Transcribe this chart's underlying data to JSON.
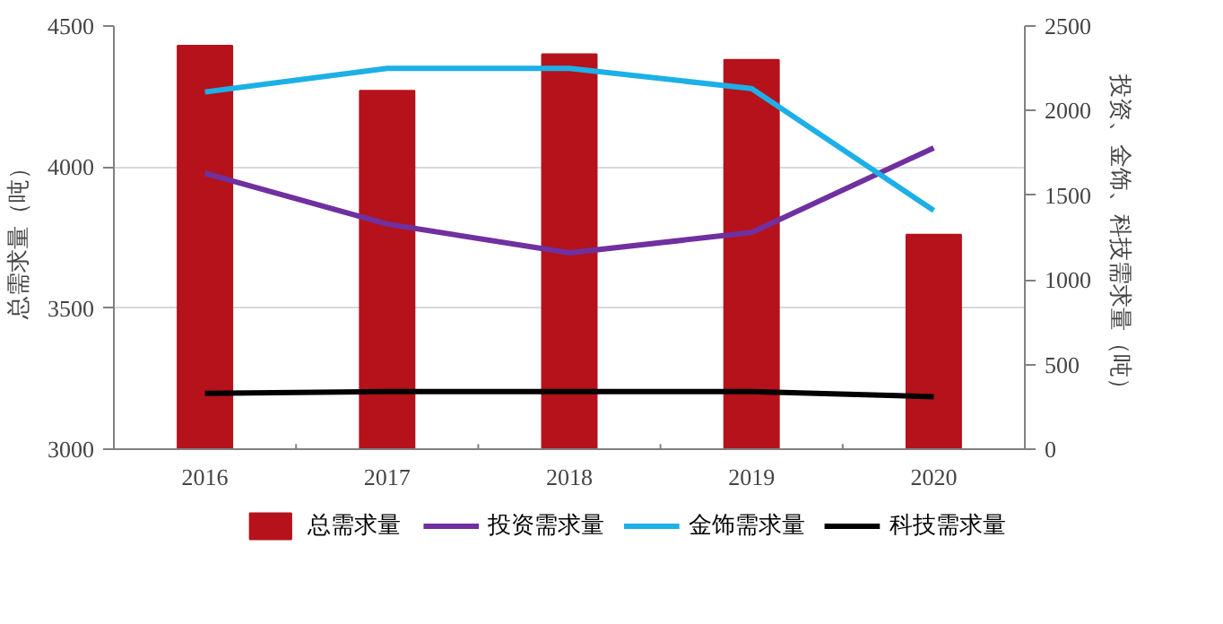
{
  "chart_data": {
    "type": "bar",
    "categories": [
      "2016",
      "2017",
      "2018",
      "2019",
      "2020"
    ],
    "ylabel": "总需求量（吨）",
    "y2label": "投资、金饰、科技需求量（吨）",
    "ylim": [
      3000,
      4500
    ],
    "yticks": [
      3000,
      3500,
      4000,
      4500
    ],
    "y2lim": [
      0,
      2500
    ],
    "y2ticks": [
      0,
      500,
      1000,
      1500,
      2000,
      2500
    ],
    "grid": "y",
    "legend": "bottom",
    "series": [
      {
        "name": "总需求量",
        "color": "#b5121b",
        "values": [
          4430,
          4270,
          4400,
          4380,
          3760
        ]
      },
      {
        "name": "投资需求量",
        "type": "line",
        "axis": "y2",
        "color": "#7030a0",
        "values": [
          1630,
          1330,
          1160,
          1280,
          1780
        ]
      },
      {
        "name": "金饰需求量",
        "type": "line",
        "axis": "y2",
        "color": "#1cb0e6",
        "values": [
          2110,
          2250,
          2250,
          2130,
          1410
        ]
      },
      {
        "name": "科技需求量",
        "type": "line",
        "axis": "y2",
        "color": "#000000",
        "values": [
          330,
          340,
          340,
          340,
          310
        ]
      }
    ]
  }
}
